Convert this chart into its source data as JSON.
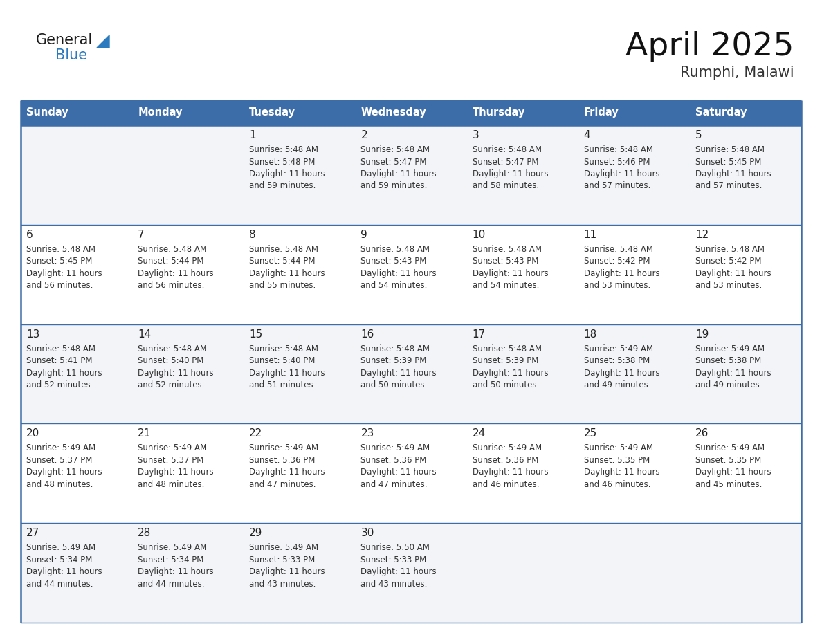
{
  "title": "April 2025",
  "subtitle": "Rumphi, Malawi",
  "days_of_week": [
    "Sunday",
    "Monday",
    "Tuesday",
    "Wednesday",
    "Thursday",
    "Friday",
    "Saturday"
  ],
  "header_bg": "#3d6da8",
  "header_text": "#ffffff",
  "cell_bg_odd": "#f2f4f8",
  "cell_bg_even": "#ffffff",
  "border_color": "#3d6da8",
  "text_color": "#333333",
  "day_num_color": "#222222",
  "logo_general_color": "#1a1a1a",
  "logo_blue_color": "#2a7abf",
  "calendar": [
    [
      {
        "day": "",
        "sunrise": "",
        "sunset": "",
        "daylight_mins": ""
      },
      {
        "day": "",
        "sunrise": "",
        "sunset": "",
        "daylight_mins": ""
      },
      {
        "day": "1",
        "sunrise": "5:48 AM",
        "sunset": "5:48 PM",
        "daylight_mins": "59 minutes."
      },
      {
        "day": "2",
        "sunrise": "5:48 AM",
        "sunset": "5:47 PM",
        "daylight_mins": "59 minutes."
      },
      {
        "day": "3",
        "sunrise": "5:48 AM",
        "sunset": "5:47 PM",
        "daylight_mins": "58 minutes."
      },
      {
        "day": "4",
        "sunrise": "5:48 AM",
        "sunset": "5:46 PM",
        "daylight_mins": "57 minutes."
      },
      {
        "day": "5",
        "sunrise": "5:48 AM",
        "sunset": "5:45 PM",
        "daylight_mins": "57 minutes."
      }
    ],
    [
      {
        "day": "6",
        "sunrise": "5:48 AM",
        "sunset": "5:45 PM",
        "daylight_mins": "56 minutes."
      },
      {
        "day": "7",
        "sunrise": "5:48 AM",
        "sunset": "5:44 PM",
        "daylight_mins": "56 minutes."
      },
      {
        "day": "8",
        "sunrise": "5:48 AM",
        "sunset": "5:44 PM",
        "daylight_mins": "55 minutes."
      },
      {
        "day": "9",
        "sunrise": "5:48 AM",
        "sunset": "5:43 PM",
        "daylight_mins": "54 minutes."
      },
      {
        "day": "10",
        "sunrise": "5:48 AM",
        "sunset": "5:43 PM",
        "daylight_mins": "54 minutes."
      },
      {
        "day": "11",
        "sunrise": "5:48 AM",
        "sunset": "5:42 PM",
        "daylight_mins": "53 minutes."
      },
      {
        "day": "12",
        "sunrise": "5:48 AM",
        "sunset": "5:42 PM",
        "daylight_mins": "53 minutes."
      }
    ],
    [
      {
        "day": "13",
        "sunrise": "5:48 AM",
        "sunset": "5:41 PM",
        "daylight_mins": "52 minutes."
      },
      {
        "day": "14",
        "sunrise": "5:48 AM",
        "sunset": "5:40 PM",
        "daylight_mins": "52 minutes."
      },
      {
        "day": "15",
        "sunrise": "5:48 AM",
        "sunset": "5:40 PM",
        "daylight_mins": "51 minutes."
      },
      {
        "day": "16",
        "sunrise": "5:48 AM",
        "sunset": "5:39 PM",
        "daylight_mins": "50 minutes."
      },
      {
        "day": "17",
        "sunrise": "5:48 AM",
        "sunset": "5:39 PM",
        "daylight_mins": "50 minutes."
      },
      {
        "day": "18",
        "sunrise": "5:49 AM",
        "sunset": "5:38 PM",
        "daylight_mins": "49 minutes."
      },
      {
        "day": "19",
        "sunrise": "5:49 AM",
        "sunset": "5:38 PM",
        "daylight_mins": "49 minutes."
      }
    ],
    [
      {
        "day": "20",
        "sunrise": "5:49 AM",
        "sunset": "5:37 PM",
        "daylight_mins": "48 minutes."
      },
      {
        "day": "21",
        "sunrise": "5:49 AM",
        "sunset": "5:37 PM",
        "daylight_mins": "48 minutes."
      },
      {
        "day": "22",
        "sunrise": "5:49 AM",
        "sunset": "5:36 PM",
        "daylight_mins": "47 minutes."
      },
      {
        "day": "23",
        "sunrise": "5:49 AM",
        "sunset": "5:36 PM",
        "daylight_mins": "47 minutes."
      },
      {
        "day": "24",
        "sunrise": "5:49 AM",
        "sunset": "5:36 PM",
        "daylight_mins": "46 minutes."
      },
      {
        "day": "25",
        "sunrise": "5:49 AM",
        "sunset": "5:35 PM",
        "daylight_mins": "46 minutes."
      },
      {
        "day": "26",
        "sunrise": "5:49 AM",
        "sunset": "5:35 PM",
        "daylight_mins": "45 minutes."
      }
    ],
    [
      {
        "day": "27",
        "sunrise": "5:49 AM",
        "sunset": "5:34 PM",
        "daylight_mins": "44 minutes."
      },
      {
        "day": "28",
        "sunrise": "5:49 AM",
        "sunset": "5:34 PM",
        "daylight_mins": "44 minutes."
      },
      {
        "day": "29",
        "sunrise": "5:49 AM",
        "sunset": "5:33 PM",
        "daylight_mins": "43 minutes."
      },
      {
        "day": "30",
        "sunrise": "5:50 AM",
        "sunset": "5:33 PM",
        "daylight_mins": "43 minutes."
      },
      {
        "day": "",
        "sunrise": "",
        "sunset": "",
        "daylight_mins": ""
      },
      {
        "day": "",
        "sunrise": "",
        "sunset": "",
        "daylight_mins": ""
      },
      {
        "day": "",
        "sunrise": "",
        "sunset": "",
        "daylight_mins": ""
      }
    ]
  ]
}
